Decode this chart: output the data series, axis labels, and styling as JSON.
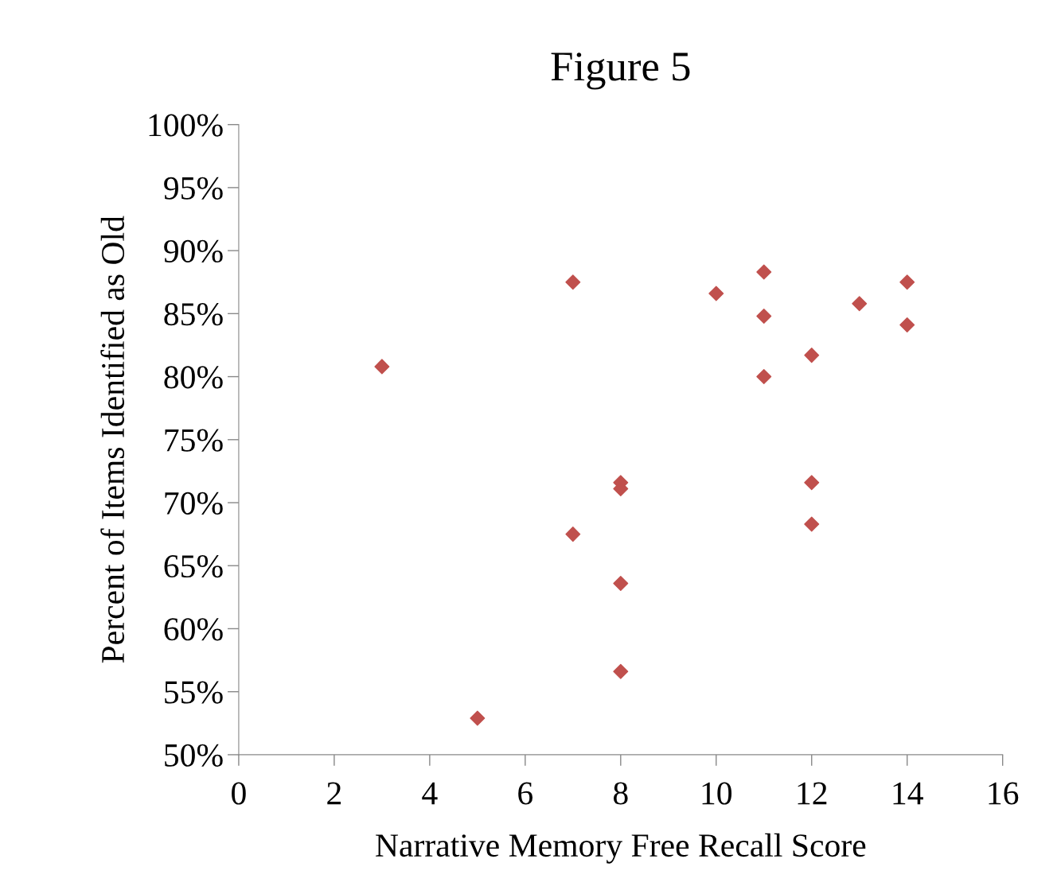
{
  "chart_data": {
    "type": "scatter",
    "title": "Figure 5",
    "xlabel": "Narrative Memory Free Recall Score",
    "ylabel": "Percent of Items Identified as Old",
    "x": [
      3,
      5,
      7,
      7,
      8,
      8,
      8,
      8,
      10,
      11,
      11,
      11,
      12,
      12,
      12,
      13,
      14,
      14
    ],
    "series": [
      {
        "color": "#c0504d",
        "values": [
          80.8,
          52.9,
          87.5,
          67.5,
          71.6,
          71.1,
          63.6,
          56.6,
          86.6,
          88.3,
          84.8,
          80.0,
          81.7,
          71.6,
          68.3,
          85.8,
          87.5,
          84.1
        ]
      }
    ],
    "xlim": [
      0,
      16
    ],
    "xticks": [
      0,
      2,
      4,
      6,
      8,
      10,
      12,
      14,
      16
    ],
    "ylim": [
      50,
      100
    ],
    "yticks": [
      {
        "value": 50,
        "label": "50%"
      },
      {
        "value": 55,
        "label": "55%"
      },
      {
        "value": 60,
        "label": "60%"
      },
      {
        "value": 65,
        "label": "65%"
      },
      {
        "value": 70,
        "label": "70%"
      },
      {
        "value": 75,
        "label": "75%"
      },
      {
        "value": 80,
        "label": "80%"
      },
      {
        "value": 85,
        "label": "85%"
      },
      {
        "value": 90,
        "label": "90%"
      },
      {
        "value": 95,
        "label": "95%"
      },
      {
        "value": 100,
        "label": "100%"
      }
    ],
    "marker": "diamond",
    "grid": false,
    "legend": false
  }
}
